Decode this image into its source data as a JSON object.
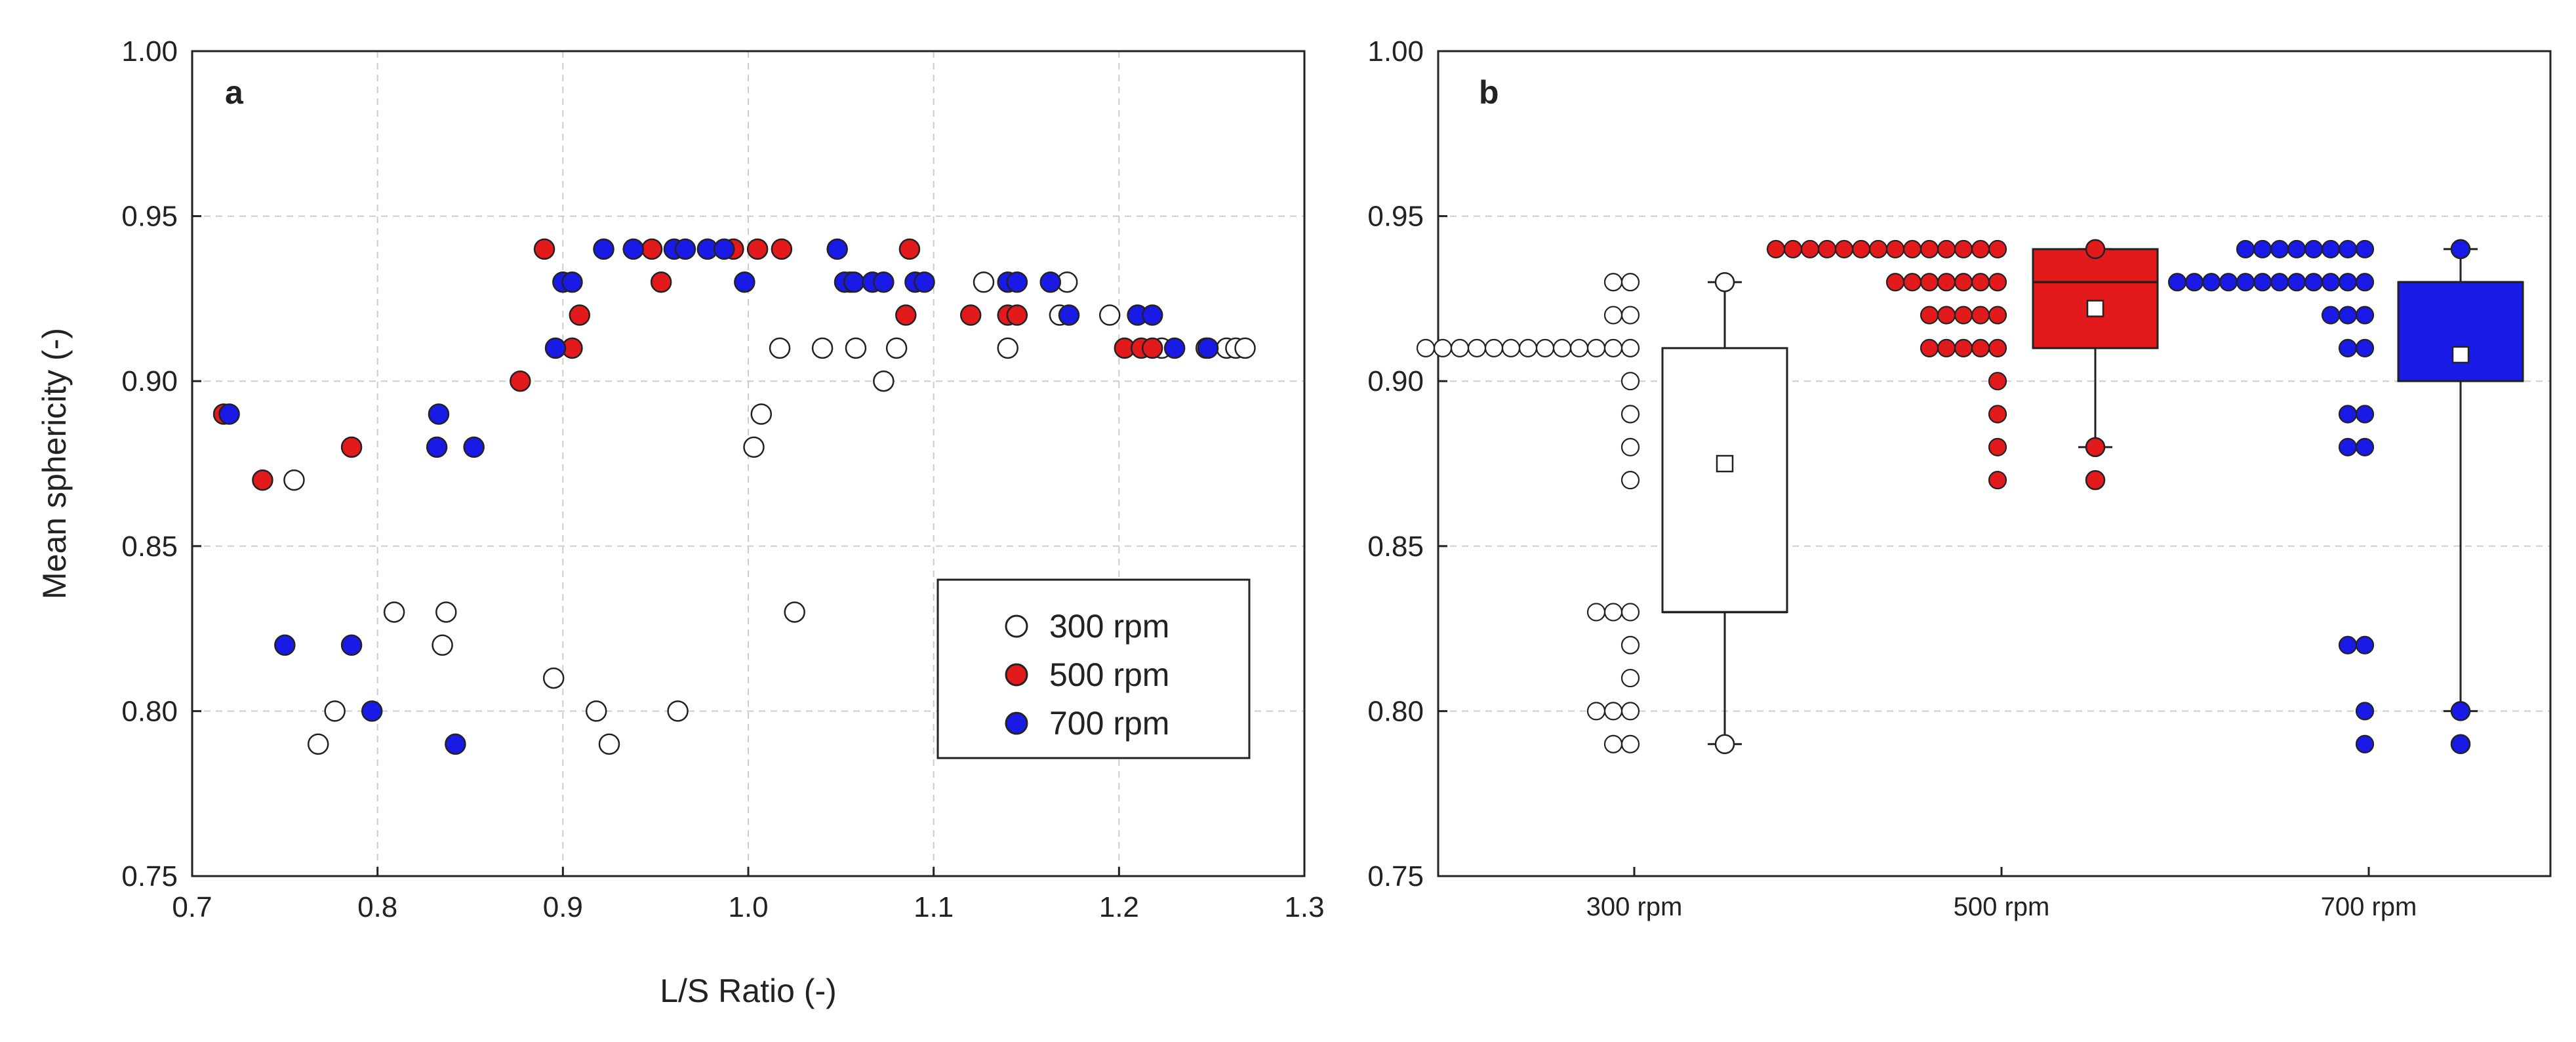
{
  "colors": {
    "r300": "#ffffff",
    "r500": "#e31a1c",
    "r700": "#1a1ae6",
    "stroke": "#222222",
    "grid": "#cccccc"
  },
  "panel_a": {
    "label": "a",
    "ylabel": "Mean sphericity (-)",
    "xlabel": "L/S Ratio (-)"
  },
  "panel_b": {
    "label": "b"
  },
  "legend": {
    "items": [
      {
        "name": "300 rpm"
      },
      {
        "name": "500 rpm"
      },
      {
        "name": "700 rpm"
      }
    ]
  },
  "chart_data": [
    {
      "type": "scatter",
      "panel": "a",
      "title": "",
      "xlabel": "L/S Ratio (-)",
      "ylabel": "Mean sphericity (-)",
      "xlim": [
        0.7,
        1.3
      ],
      "ylim": [
        0.75,
        1.0
      ],
      "xticks": [
        "0.7",
        "0.8",
        "0.9",
        "1.0",
        "1.1",
        "1.2",
        "1.3"
      ],
      "yticks": [
        "0.75",
        "0.80",
        "0.85",
        "0.90",
        "0.95",
        "1.00"
      ],
      "grid": "dashed",
      "legend_position": "bottom-right",
      "series": [
        {
          "name": "300 rpm",
          "points": [
            [
              0.755,
              0.87
            ],
            [
              0.768,
              0.79
            ],
            [
              0.777,
              0.8
            ],
            [
              0.809,
              0.83
            ],
            [
              0.835,
              0.82
            ],
            [
              0.837,
              0.83
            ],
            [
              0.895,
              0.81
            ],
            [
              0.918,
              0.8
            ],
            [
              0.925,
              0.79
            ],
            [
              0.962,
              0.8
            ],
            [
              1.003,
              0.88
            ],
            [
              1.007,
              0.89
            ],
            [
              1.017,
              0.91
            ],
            [
              1.025,
              0.83
            ],
            [
              1.04,
              0.91
            ],
            [
              1.058,
              0.91
            ],
            [
              1.073,
              0.9
            ],
            [
              1.08,
              0.91
            ],
            [
              1.127,
              0.93
            ],
            [
              1.14,
              0.91
            ],
            [
              1.168,
              0.92
            ],
            [
              1.172,
              0.93
            ],
            [
              1.195,
              0.92
            ],
            [
              1.223,
              0.91
            ],
            [
              1.247,
              0.91
            ],
            [
              1.258,
              0.91
            ],
            [
              1.263,
              0.91
            ],
            [
              1.268,
              0.91
            ]
          ]
        },
        {
          "name": "500 rpm",
          "points": [
            [
              0.717,
              0.89
            ],
            [
              0.738,
              0.87
            ],
            [
              0.786,
              0.88
            ],
            [
              0.877,
              0.9
            ],
            [
              0.89,
              0.94
            ],
            [
              0.905,
              0.91
            ],
            [
              0.909,
              0.92
            ],
            [
              0.948,
              0.94
            ],
            [
              0.953,
              0.93
            ],
            [
              0.992,
              0.94
            ],
            [
              1.005,
              0.94
            ],
            [
              1.018,
              0.94
            ],
            [
              1.055,
              0.93
            ],
            [
              1.085,
              0.92
            ],
            [
              1.087,
              0.94
            ],
            [
              1.12,
              0.92
            ],
            [
              1.14,
              0.92
            ],
            [
              1.145,
              0.92
            ],
            [
              1.203,
              0.91
            ],
            [
              1.212,
              0.91
            ],
            [
              1.218,
              0.91
            ]
          ]
        },
        {
          "name": "700 rpm",
          "points": [
            [
              0.72,
              0.89
            ],
            [
              0.75,
              0.82
            ],
            [
              0.786,
              0.82
            ],
            [
              0.797,
              0.8
            ],
            [
              0.832,
              0.88
            ],
            [
              0.833,
              0.89
            ],
            [
              0.842,
              0.79
            ],
            [
              0.852,
              0.88
            ],
            [
              0.896,
              0.91
            ],
            [
              0.9,
              0.93
            ],
            [
              0.905,
              0.93
            ],
            [
              0.922,
              0.94
            ],
            [
              0.938,
              0.94
            ],
            [
              0.96,
              0.94
            ],
            [
              0.966,
              0.94
            ],
            [
              0.978,
              0.94
            ],
            [
              0.987,
              0.94
            ],
            [
              0.998,
              0.93
            ],
            [
              1.048,
              0.94
            ],
            [
              1.052,
              0.93
            ],
            [
              1.057,
              0.93
            ],
            [
              1.067,
              0.93
            ],
            [
              1.073,
              0.93
            ],
            [
              1.09,
              0.93
            ],
            [
              1.095,
              0.93
            ],
            [
              1.14,
              0.93
            ],
            [
              1.145,
              0.93
            ],
            [
              1.163,
              0.93
            ],
            [
              1.173,
              0.92
            ],
            [
              1.21,
              0.92
            ],
            [
              1.218,
              0.92
            ],
            [
              1.23,
              0.91
            ],
            [
              1.248,
              0.91
            ]
          ]
        }
      ]
    },
    {
      "type": "box",
      "panel": "b",
      "title": "",
      "ylim": [
        0.75,
        1.0
      ],
      "yticks": [
        "0.75",
        "0.80",
        "0.85",
        "0.90",
        "0.95",
        "1.00"
      ],
      "categories": [
        "300 rpm",
        "500 rpm",
        "700 rpm"
      ],
      "grid": "dashed",
      "boxes": [
        {
          "name": "300 rpm",
          "q1": 0.83,
          "median": 0.83,
          "q3": 0.91,
          "mean": 0.875,
          "whisker_low": 0.79,
          "whisker_high": 0.93,
          "outliers": [
            0.79,
            0.93
          ]
        },
        {
          "name": "500 rpm",
          "q1": 0.91,
          "median": 0.93,
          "q3": 0.94,
          "mean": 0.922,
          "whisker_low": 0.88,
          "whisker_high": 0.94,
          "outliers": [
            0.94,
            0.88,
            0.87
          ]
        },
        {
          "name": "700 rpm",
          "q1": 0.9,
          "median": 0.93,
          "q3": 0.93,
          "mean": 0.908,
          "whisker_low": 0.8,
          "whisker_high": 0.94,
          "outliers": [
            0.94,
            0.8,
            0.79
          ]
        }
      ],
      "strips": [
        {
          "name": "300 rpm",
          "values": [
            0.91,
            0.91,
            0.91,
            0.91,
            0.91,
            0.91,
            0.91,
            0.91,
            0.91,
            0.91,
            0.91,
            0.91,
            0.91,
            0.9,
            0.92,
            0.92,
            0.93,
            0.93,
            0.89,
            0.88,
            0.87,
            0.83,
            0.83,
            0.83,
            0.82,
            0.81,
            0.8,
            0.8,
            0.8,
            0.79,
            0.79
          ]
        },
        {
          "name": "500 rpm",
          "values": [
            0.94,
            0.94,
            0.94,
            0.94,
            0.94,
            0.94,
            0.94,
            0.94,
            0.94,
            0.94,
            0.94,
            0.94,
            0.94,
            0.94,
            0.93,
            0.93,
            0.93,
            0.93,
            0.93,
            0.93,
            0.93,
            0.92,
            0.92,
            0.92,
            0.92,
            0.92,
            0.91,
            0.91,
            0.91,
            0.91,
            0.91,
            0.9,
            0.89,
            0.88,
            0.87
          ]
        },
        {
          "name": "700 rpm",
          "values": [
            0.94,
            0.94,
            0.94,
            0.94,
            0.94,
            0.94,
            0.94,
            0.94,
            0.93,
            0.93,
            0.93,
            0.93,
            0.93,
            0.93,
            0.93,
            0.93,
            0.93,
            0.93,
            0.93,
            0.93,
            0.92,
            0.92,
            0.92,
            0.91,
            0.91,
            0.89,
            0.89,
            0.88,
            0.88,
            0.82,
            0.82,
            0.8,
            0.79
          ]
        }
      ]
    }
  ]
}
